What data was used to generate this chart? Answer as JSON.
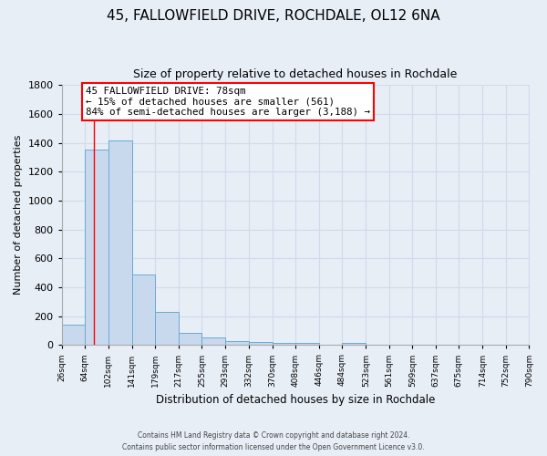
{
  "title_line1": "45, FALLOWFIELD DRIVE, ROCHDALE, OL12 6NA",
  "title_line2": "Size of property relative to detached houses in Rochdale",
  "xlabel": "Distribution of detached houses by size in Rochdale",
  "ylabel": "Number of detached properties",
  "bin_edges": [
    26,
    64,
    102,
    141,
    179,
    217,
    255,
    293,
    332,
    370,
    408,
    446,
    484,
    523,
    561,
    599,
    637,
    675,
    714,
    752,
    790
  ],
  "bar_heights": [
    140,
    1355,
    1415,
    490,
    230,
    85,
    50,
    30,
    20,
    15,
    15,
    0,
    15,
    0,
    0,
    0,
    0,
    0,
    0,
    0
  ],
  "tick_labels": [
    "26sqm",
    "64sqm",
    "102sqm",
    "141sqm",
    "179sqm",
    "217sqm",
    "255sqm",
    "293sqm",
    "332sqm",
    "370sqm",
    "408sqm",
    "446sqm",
    "484sqm",
    "523sqm",
    "561sqm",
    "599sqm",
    "637sqm",
    "675sqm",
    "714sqm",
    "752sqm",
    "790sqm"
  ],
  "ylim": [
    0,
    1800
  ],
  "yticks": [
    0,
    200,
    400,
    600,
    800,
    1000,
    1200,
    1400,
    1600,
    1800
  ],
  "bar_color": "#c8d9ee",
  "bar_edge_color": "#6aaad4",
  "bg_color": "#e8eef6",
  "grid_color": "#d0daea",
  "red_line_x": 78,
  "annotation_box_text": "45 FALLOWFIELD DRIVE: 78sqm\n← 15% of detached houses are smaller (561)\n84% of semi-detached houses are larger (3,188) →",
  "footnote1": "Contains HM Land Registry data © Crown copyright and database right 2024.",
  "footnote2": "Contains public sector information licensed under the Open Government Licence v3.0."
}
